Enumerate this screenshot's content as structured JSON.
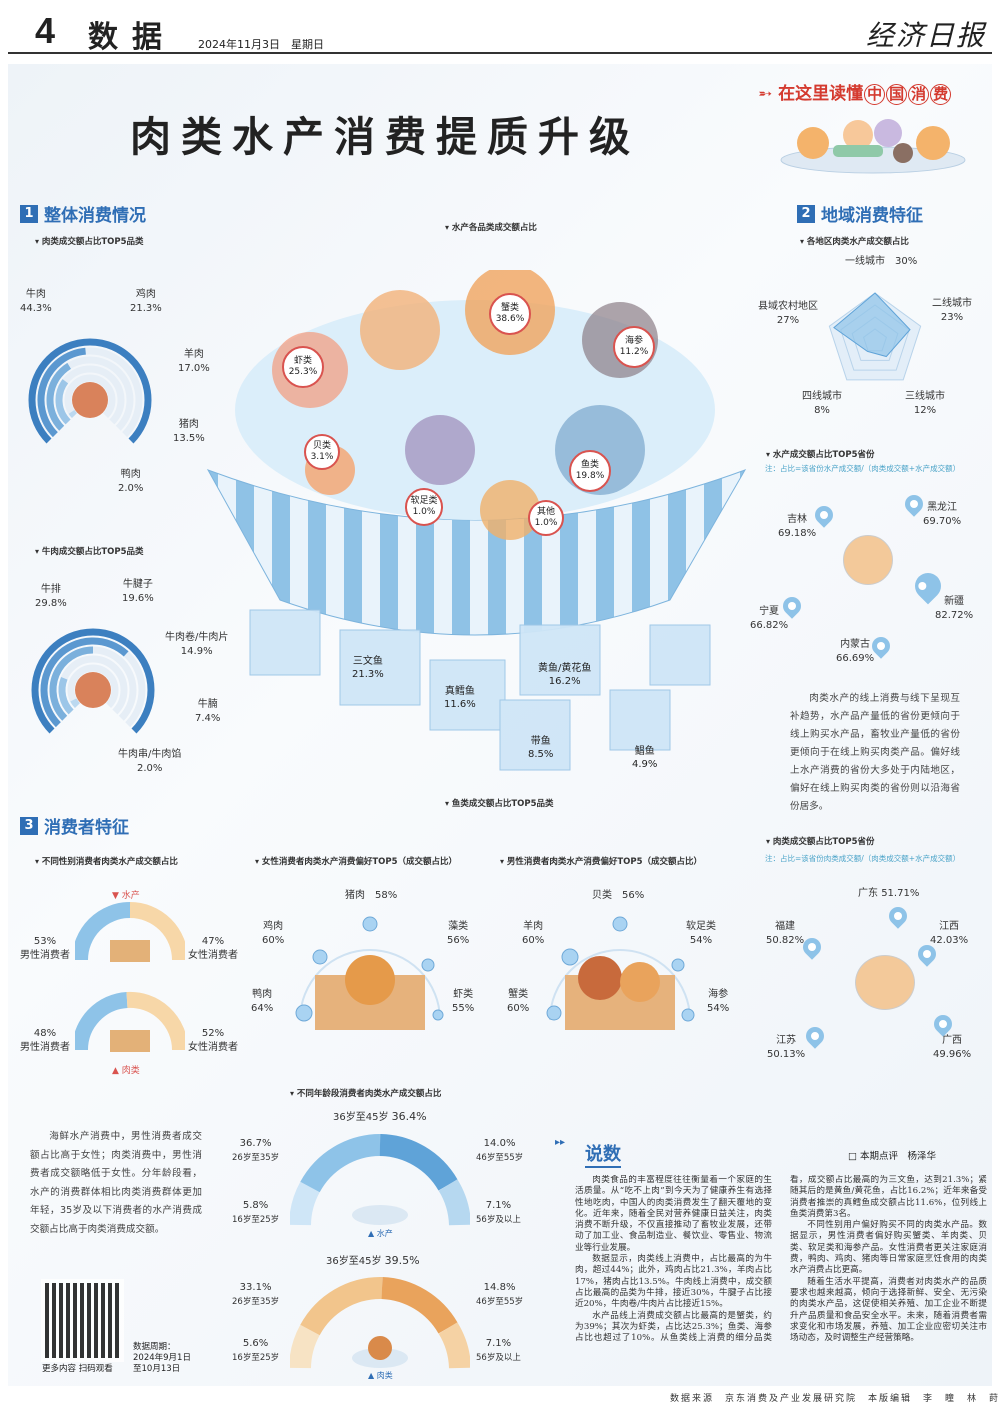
{
  "header": {
    "page_number": "4",
    "section": "数据",
    "date": "2024年11月3日　星期日",
    "logo": "经济日报"
  },
  "title": "肉类水产消费提质升级",
  "brand": {
    "prefix": "在这里读懂",
    "circled": [
      "中",
      "国",
      "消",
      "费"
    ]
  },
  "section1": {
    "number": "1",
    "title": "整体消费情况",
    "meat_top5": {
      "title": "肉类成交额占比TOP5品类",
      "items": [
        {
          "name": "牛肉",
          "value": "44.3%",
          "v": 44.3
        },
        {
          "name": "鸡肉",
          "value": "21.3%",
          "v": 21.3
        },
        {
          "name": "羊肉",
          "value": "17.0%",
          "v": 17.0
        },
        {
          "name": "猪肉",
          "value": "13.5%",
          "v": 13.5
        },
        {
          "name": "鸭肉",
          "value": "2.0%",
          "v": 2.0
        }
      ]
    },
    "beef_top5": {
      "title": "牛肉成交额占比TOP5品类",
      "items": [
        {
          "name": "牛排",
          "value": "29.8%",
          "v": 29.8
        },
        {
          "name": "牛腱子",
          "value": "19.6%",
          "v": 19.6
        },
        {
          "name": "牛肉卷/牛肉片",
          "value": "14.9%",
          "v": 14.9
        },
        {
          "name": "牛腩",
          "value": "7.4%",
          "v": 7.4
        },
        {
          "name": "牛肉串/牛肉馅",
          "value": "2.0%",
          "v": 2.0
        }
      ]
    },
    "aquatic": {
      "title": "水产各品类成交额占比",
      "items": [
        {
          "name": "蟹类",
          "value": "38.6%"
        },
        {
          "name": "虾类",
          "value": "25.3%"
        },
        {
          "name": "海参",
          "value": "11.2%"
        },
        {
          "name": "贝类",
          "value": "3.1%"
        },
        {
          "name": "鱼类",
          "value": "19.8%"
        },
        {
          "name": "软足类",
          "value": "1.0%"
        },
        {
          "name": "其他",
          "value": "1.0%"
        }
      ]
    },
    "fish_top5": {
      "title": "鱼类成交额占比TOP5品类",
      "items": [
        {
          "name": "三文鱼",
          "value": "21.3%"
        },
        {
          "name": "真鳕鱼",
          "value": "11.6%"
        },
        {
          "name": "黄鱼/黄花鱼",
          "value": "16.2%"
        },
        {
          "name": "带鱼",
          "value": "8.5%"
        },
        {
          "name": "鲳鱼",
          "value": "4.9%"
        }
      ]
    }
  },
  "section2": {
    "number": "2",
    "title": "地域消费特征",
    "regions": {
      "title": "各地区肉类水产成交额占比",
      "items": [
        {
          "name": "一线城市",
          "value": "30%",
          "v": 30
        },
        {
          "name": "二线城市",
          "value": "23%",
          "v": 23
        },
        {
          "name": "三线城市",
          "value": "12%",
          "v": 12
        },
        {
          "name": "四线城市",
          "value": "8%",
          "v": 8
        },
        {
          "name": "县域农村地区",
          "value": "27%",
          "v": 27
        }
      ]
    },
    "aquatic_provinces": {
      "title": "水产成交额占比TOP5省份",
      "note": "注：占比=该省份水产成交额/（肉类成交额+水产成交额）",
      "items": [
        {
          "name": "吉林",
          "value": "69.18%"
        },
        {
          "name": "黑龙江",
          "value": "69.70%"
        },
        {
          "name": "新疆",
          "value": "82.72%"
        },
        {
          "name": "宁夏",
          "value": "66.82%"
        },
        {
          "name": "内蒙古",
          "value": "66.69%"
        }
      ]
    },
    "paragraph": "肉类水产的线上消费与线下呈现互补趋势，水产品产量低的省份更倾向于线上购买水产品，畜牧业产量低的省份更倾向于在线上购买肉类产品。偏好线上水产消费的省份大多处于内陆地区，偏好在线上购买肉类的省份则以沿海省份居多。",
    "meat_provinces": {
      "title": "肉类成交额占比TOP5省份",
      "note": "注：占比=该省份肉类成交额/（肉类成交额+水产成交额）",
      "items": [
        {
          "name": "广东",
          "value": "51.71%"
        },
        {
          "name": "福建",
          "value": "50.82%"
        },
        {
          "name": "江西",
          "value": "42.03%"
        },
        {
          "name": "江苏",
          "value": "50.13%"
        },
        {
          "name": "广西",
          "value": "49.96%"
        }
      ]
    }
  },
  "section3": {
    "number": "3",
    "title": "消费者特征",
    "gender": {
      "title": "不同性别消费者肉类水产成交额占比",
      "aquatic_label": "水产",
      "meat_label": "肉类",
      "aquatic": [
        {
          "name": "男性消费者",
          "value": "53%"
        },
        {
          "name": "女性消费者",
          "value": "47%"
        }
      ],
      "meat": [
        {
          "name": "男性消费者",
          "value": "48%"
        },
        {
          "name": "女性消费者",
          "value": "52%"
        }
      ]
    },
    "female": {
      "title": "女性消费者肉类水产消费偏好TOP5（成交额占比）",
      "items": [
        {
          "name": "猪肉",
          "value": "58%"
        },
        {
          "name": "鸡肉",
          "value": "60%"
        },
        {
          "name": "藻类",
          "value": "56%"
        },
        {
          "name": "鸭肉",
          "value": "64%"
        },
        {
          "name": "虾类",
          "value": "55%"
        }
      ]
    },
    "male": {
      "title": "男性消费者肉类水产消费偏好TOP5（成交额占比）",
      "items": [
        {
          "name": "贝类",
          "value": "56%"
        },
        {
          "name": "羊肉",
          "value": "60%"
        },
        {
          "name": "软足类",
          "value": "54%"
        },
        {
          "name": "蟹类",
          "value": "60%"
        },
        {
          "name": "海参",
          "value": "54%"
        }
      ]
    },
    "age": {
      "title": "不同年龄段消费者肉类水产成交额占比",
      "aquatic": {
        "label": "水产",
        "items": [
          {
            "name": "36岁至45岁",
            "value": "36.4%"
          },
          {
            "name": "26岁至35岁",
            "value": "36.7%"
          },
          {
            "name": "46岁至55岁",
            "value": "14.0%"
          },
          {
            "name": "16岁至25岁",
            "value": "5.8%"
          },
          {
            "name": "56岁及以上",
            "value": "7.1%"
          }
        ]
      },
      "meat": {
        "label": "肉类",
        "items": [
          {
            "name": "36岁至45岁",
            "value": "39.5%"
          },
          {
            "name": "26岁至35岁",
            "value": "33.1%"
          },
          {
            "name": "46岁至55岁",
            "value": "14.8%"
          },
          {
            "name": "16岁至25岁",
            "value": "5.6%"
          },
          {
            "name": "56岁及以上",
            "value": "7.1%"
          }
        ]
      }
    },
    "paragraph": "海鲜水产消费中，男性消费者成交额占比高于女性；肉类消费中，男性消费者成交额略低于女性。分年龄段看，水产的消费群体相比肉类消费群体更加年轻，35岁及以下消费者的水产消费成交额占比高于肉类消费成交额。"
  },
  "qr": {
    "caption": "更多内容 扫码观看",
    "period_label": "数据周期：",
    "period_1": "2024年9月1日",
    "period_2": "至10月13日"
  },
  "article": {
    "title": "说数",
    "reviewer": "□ 本期点评　杨泽华",
    "paragraphs": [
      "肉类食品的丰富程度往往衡量着一个家庭的生活质量。从“吃不上肉”到今天为了健康养生有选择性地吃肉，中国人的肉类消费发生了翻天覆地的变化。近年来，随着全民对营养健康日益关注，肉类消费不断升级，不仅直接推动了畜牧业发展，还带动了加工业、食品制造业、餐饮业、零售业、物流业等行业发展。",
      "数据显示，肉类线上消费中，占比最高的为牛肉，超过44%；此外，鸡肉占比21.3%，羊肉占比17%，猪肉占比13.5%。牛肉线上消费中，成交额占比最高的品类为牛排，接近30%，牛腱子占比接近20%，牛肉卷/牛肉片占比接近15%。",
      "水产品线上消费成交额占比最高的是蟹类，约为39%；其次为虾类，占比达25.3%；鱼类、海参占比也超过了10%。从鱼类线上消费的细分品类看，成交额占比最高的为三文鱼，达到21.3%；紧随其后的是黄鱼/黄花鱼，占比16.2%；近年来备受消费者推崇的真鳕鱼成交额占比11.6%，位列线上鱼类消费第3名。",
      "不同性别用户偏好购买不同的肉类水产品。数据显示，男性消费者偏好购买蟹类、羊肉类、贝类、软足类和海参产品。女性消费者更关注家庭消费，鸭肉、鸡肉、猪肉等日常家庭烹饪食用的肉类水产消费占比更高。",
      "随着生活水平提高，消费者对肉类水产的品质要求也越来越高，倾向于选择新鲜、安全、无污染的肉类水产品，这促使相关养殖、加工企业不断提升产品质量和食品安全水平。未来，随着消费者需求变化和市场发展，养殖、加工企业应密切关注市场动态，及时调整生产经营策略。"
    ]
  },
  "footer": "数据来源　京东消费及产业发展研究院　本版编辑　李　瞳　林　莳",
  "colors": {
    "accent_blue": "#2f6eb5",
    "brand_red": "#d43a2f",
    "light_blue": "#8ec3e8"
  }
}
